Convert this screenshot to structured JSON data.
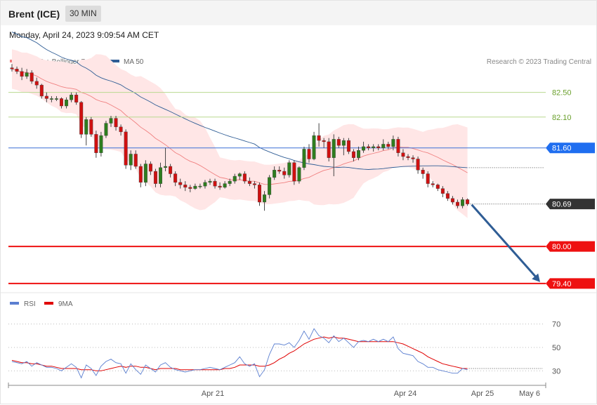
{
  "header": {
    "instrument": "Brent (ICE)",
    "timeframe": "30 MIN",
    "datetime": "Monday, April 24, 2023 9:09:54 AM CET"
  },
  "legend": {
    "ma20": "MA 20 + Bollinger Bands",
    "ma50": "MA 50",
    "credit": "Research © 2023 Trading Central",
    "rsi": "RSI",
    "rsi_ma": "9MA"
  },
  "colors": {
    "up": "#2e7d1e",
    "down": "#d01010",
    "band_fill": "#ffe6e6",
    "ma20": "#f08080",
    "ma50": "#2f5d95",
    "pivot": "#3b6fd6",
    "support": "#ee1111",
    "resistance": "#b9d98f",
    "current": "#333333",
    "rsi": "#5b7fd0",
    "rsi_ma": "#e00000",
    "arrow": "#2f5d95"
  },
  "chart_data": [
    {
      "type": "candlestick",
      "ylim": [
        79.25,
        83.1
      ],
      "x_ticks": [
        "Apr 21",
        "Apr 24",
        "Apr 25",
        "May 6"
      ],
      "levels": [
        {
          "value": 82.5,
          "label": "82.50",
          "kind": "resistance"
        },
        {
          "value": 82.1,
          "label": "82.10",
          "kind": "resistance"
        },
        {
          "value": 81.6,
          "label": "81.60",
          "kind": "pivot"
        },
        {
          "value": 80.69,
          "label": "80.69",
          "kind": "current"
        },
        {
          "value": 80.0,
          "label": "80.00",
          "kind": "support"
        },
        {
          "value": 79.4,
          "label": "79.40",
          "kind": "support"
        }
      ],
      "candles": [
        [
          82.9,
          82.96,
          82.84,
          82.88
        ],
        [
          82.88,
          82.92,
          82.8,
          82.84
        ],
        [
          82.84,
          82.9,
          82.7,
          82.76
        ],
        [
          82.76,
          82.88,
          82.72,
          82.82
        ],
        [
          82.82,
          82.86,
          82.64,
          82.68
        ],
        [
          82.68,
          82.74,
          82.56,
          82.62
        ],
        [
          82.62,
          82.64,
          82.4,
          82.44
        ],
        [
          82.44,
          82.5,
          82.34,
          82.4
        ],
        [
          82.4,
          82.44,
          82.34,
          82.4
        ],
        [
          82.4,
          82.44,
          82.36,
          82.4
        ],
        [
          82.4,
          82.42,
          82.24,
          82.28
        ],
        [
          82.28,
          82.42,
          82.24,
          82.38
        ],
        [
          82.38,
          82.5,
          82.34,
          82.46
        ],
        [
          82.46,
          82.5,
          82.3,
          82.34
        ],
        [
          82.34,
          82.36,
          81.76,
          81.82
        ],
        [
          81.82,
          82.1,
          81.64,
          82.06
        ],
        [
          82.06,
          82.1,
          81.78,
          81.82
        ],
        [
          81.82,
          81.88,
          81.44,
          81.52
        ],
        [
          81.52,
          81.86,
          81.46,
          81.8
        ],
        [
          81.8,
          82.04,
          81.76,
          82.0
        ],
        [
          82.0,
          82.12,
          81.94,
          82.08
        ],
        [
          82.08,
          82.12,
          81.88,
          81.94
        ],
        [
          81.94,
          81.98,
          81.8,
          81.86
        ],
        [
          81.86,
          81.9,
          81.26,
          81.32
        ],
        [
          81.32,
          81.56,
          81.24,
          81.5
        ],
        [
          81.5,
          81.56,
          81.26,
          81.3
        ],
        [
          81.3,
          81.34,
          80.96,
          81.04
        ],
        [
          81.04,
          81.4,
          80.98,
          81.34
        ],
        [
          81.34,
          81.38,
          81.16,
          81.22
        ],
        [
          81.22,
          81.26,
          80.96,
          81.02
        ],
        [
          81.02,
          81.36,
          80.96,
          81.28
        ],
        [
          81.28,
          81.6,
          81.22,
          81.3
        ],
        [
          81.3,
          81.34,
          81.12,
          81.18
        ],
        [
          81.18,
          81.22,
          80.98,
          81.04
        ],
        [
          81.04,
          81.1,
          80.94,
          81.0
        ],
        [
          81.0,
          81.06,
          80.9,
          80.96
        ],
        [
          80.96,
          81.0,
          80.88,
          80.94
        ],
        [
          80.94,
          81.02,
          80.92,
          80.98
        ],
        [
          80.98,
          81.02,
          80.94,
          80.98
        ],
        [
          80.98,
          81.08,
          80.94,
          81.04
        ],
        [
          81.04,
          81.1,
          81.0,
          81.06
        ],
        [
          81.06,
          81.1,
          80.94,
          80.98
        ],
        [
          80.98,
          81.04,
          80.92,
          80.96
        ],
        [
          80.96,
          81.06,
          80.94,
          81.02
        ],
        [
          81.02,
          81.1,
          80.98,
          81.06
        ],
        [
          81.06,
          81.18,
          81.02,
          81.14
        ],
        [
          81.14,
          81.2,
          81.08,
          81.18
        ],
        [
          81.18,
          81.22,
          81.02,
          81.06
        ],
        [
          81.06,
          81.12,
          80.98,
          81.02
        ],
        [
          81.02,
          81.06,
          80.94,
          81.0
        ],
        [
          81.0,
          81.04,
          80.66,
          80.72
        ],
        [
          80.72,
          80.9,
          80.58,
          80.84
        ],
        [
          80.84,
          81.16,
          80.78,
          81.12
        ],
        [
          81.12,
          81.3,
          81.08,
          81.24
        ],
        [
          81.24,
          81.3,
          81.18,
          81.22
        ],
        [
          81.22,
          81.28,
          81.1,
          81.16
        ],
        [
          81.16,
          81.4,
          81.12,
          81.36
        ],
        [
          81.36,
          81.4,
          81.0,
          81.06
        ],
        [
          81.06,
          81.3,
          81.02,
          81.28
        ],
        [
          81.28,
          81.62,
          81.24,
          81.58
        ],
        [
          81.58,
          81.66,
          81.36,
          81.42
        ],
        [
          81.42,
          81.86,
          81.4,
          81.8
        ],
        [
          81.8,
          82.0,
          81.62,
          81.72
        ],
        [
          81.72,
          81.76,
          81.6,
          81.7
        ],
        [
          81.7,
          81.76,
          81.38,
          81.44
        ],
        [
          81.44,
          81.82,
          81.14,
          81.74
        ],
        [
          81.74,
          81.78,
          81.6,
          81.64
        ],
        [
          81.64,
          81.76,
          81.48,
          81.72
        ],
        [
          81.72,
          81.76,
          81.5,
          81.54
        ],
        [
          81.54,
          81.58,
          81.38,
          81.44
        ],
        [
          81.44,
          81.62,
          81.4,
          81.56
        ],
        [
          81.56,
          81.7,
          81.52,
          81.62
        ],
        [
          81.62,
          81.66,
          81.56,
          81.6
        ],
        [
          81.6,
          81.66,
          81.54,
          81.62
        ],
        [
          81.62,
          81.66,
          81.56,
          81.6
        ],
        [
          81.6,
          81.74,
          81.56,
          81.66
        ],
        [
          81.66,
          81.7,
          81.58,
          81.62
        ],
        [
          81.62,
          81.8,
          81.56,
          81.74
        ],
        [
          81.74,
          81.78,
          81.46,
          81.52
        ],
        [
          81.52,
          81.58,
          81.4,
          81.46
        ],
        [
          81.46,
          81.5,
          81.4,
          81.44
        ],
        [
          81.44,
          81.48,
          81.36,
          81.42
        ],
        [
          81.42,
          81.46,
          81.18,
          81.24
        ],
        [
          81.24,
          81.28,
          81.1,
          81.18
        ],
        [
          81.18,
          81.22,
          80.96,
          81.02
        ],
        [
          81.02,
          81.06,
          80.96,
          81.0
        ],
        [
          81.0,
          81.02,
          80.9,
          80.94
        ],
        [
          80.94,
          80.98,
          80.8,
          80.86
        ],
        [
          80.86,
          80.9,
          80.74,
          80.78
        ],
        [
          80.78,
          80.82,
          80.68,
          80.72
        ],
        [
          80.72,
          80.76,
          80.62,
          80.66
        ],
        [
          80.66,
          80.8,
          80.62,
          80.76
        ],
        [
          80.76,
          80.78,
          80.66,
          80.69
        ]
      ]
    },
    {
      "type": "line",
      "name": "RSI",
      "ylim": [
        20,
        80
      ],
      "y_ticks": [
        30,
        50,
        70
      ],
      "series": [
        {
          "name": "RSI",
          "values": [
            38,
            37,
            36,
            38,
            34,
            37,
            35,
            33,
            33,
            32,
            30,
            33,
            36,
            33,
            24,
            35,
            32,
            26,
            34,
            38,
            40,
            37,
            36,
            28,
            36,
            31,
            27,
            35,
            32,
            29,
            35,
            37,
            33,
            31,
            30,
            29,
            30,
            31,
            31,
            32,
            33,
            32,
            31,
            33,
            35,
            37,
            42,
            36,
            34,
            36,
            25,
            31,
            44,
            53,
            53,
            52,
            54,
            50,
            56,
            64,
            57,
            66,
            60,
            58,
            54,
            60,
            55,
            58,
            54,
            50,
            55,
            56,
            55,
            57,
            55,
            57,
            55,
            59,
            49,
            45,
            44,
            43,
            38,
            36,
            33,
            33,
            31,
            30,
            29,
            28,
            28,
            32,
            31
          ]
        },
        {
          "name": "9MA",
          "values": [
            39,
            38,
            37,
            37,
            36,
            36,
            35,
            34,
            34,
            33,
            32,
            32,
            32,
            32,
            31,
            31,
            31,
            30,
            30,
            31,
            32,
            33,
            34,
            33,
            34,
            34,
            33,
            33,
            32,
            31,
            32,
            32,
            32,
            32,
            31,
            31,
            31,
            31,
            31,
            31,
            31,
            31,
            31,
            32,
            32,
            33,
            35,
            35,
            35,
            35,
            34,
            34,
            35,
            37,
            40,
            42,
            45,
            47,
            50,
            53,
            55,
            57,
            58,
            59,
            58,
            59,
            58,
            58,
            57,
            56,
            55,
            55,
            55,
            55,
            55,
            55,
            55,
            55,
            54,
            53,
            51,
            49,
            47,
            45,
            42,
            40,
            38,
            36,
            35,
            34,
            33,
            32,
            32
          ]
        }
      ]
    }
  ]
}
